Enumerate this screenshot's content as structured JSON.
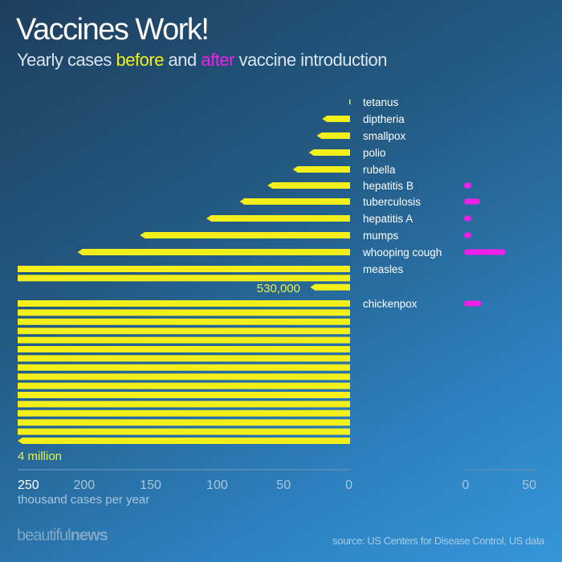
{
  "title": "Vaccines Work!",
  "subtitle": {
    "pre": "Yearly cases ",
    "before": "before",
    "mid": " and ",
    "after": "after",
    "post": " vaccine introduction"
  },
  "brand": {
    "light": "beautiful",
    "bold": "news"
  },
  "source": "source: US Centers for Disease Control, US data",
  "colors": {
    "before": "#f2ef1a",
    "after": "#f020e8"
  },
  "chart_data": {
    "type": "bar",
    "categories": [
      "tetanus",
      "diptheria",
      "smallpox",
      "polio",
      "rubella",
      "hepatitis B",
      "tuberculosis",
      "hepatitis A",
      "mumps",
      "whooping cough",
      "measles",
      "chickenpox"
    ],
    "series": [
      {
        "name": "before",
        "values": [
          0.6,
          21,
          25,
          31,
          43,
          62,
          83,
          108,
          158,
          205,
          530,
          4000
        ]
      },
      {
        "name": "after",
        "values": [
          0,
          0,
          0,
          0,
          0,
          2,
          9,
          2,
          1,
          27,
          0,
          10
        ]
      }
    ],
    "unit_label": "thousand cases per year",
    "before_axis": {
      "range": [
        250,
        0
      ],
      "ticks": [
        "250",
        "200",
        "150",
        "100",
        "50",
        "0"
      ]
    },
    "after_axis": {
      "range": [
        0,
        50
      ],
      "ticks": [
        "0",
        "50"
      ]
    },
    "annotations": {
      "measles": "530,000",
      "chickenpox": "4 million"
    }
  }
}
